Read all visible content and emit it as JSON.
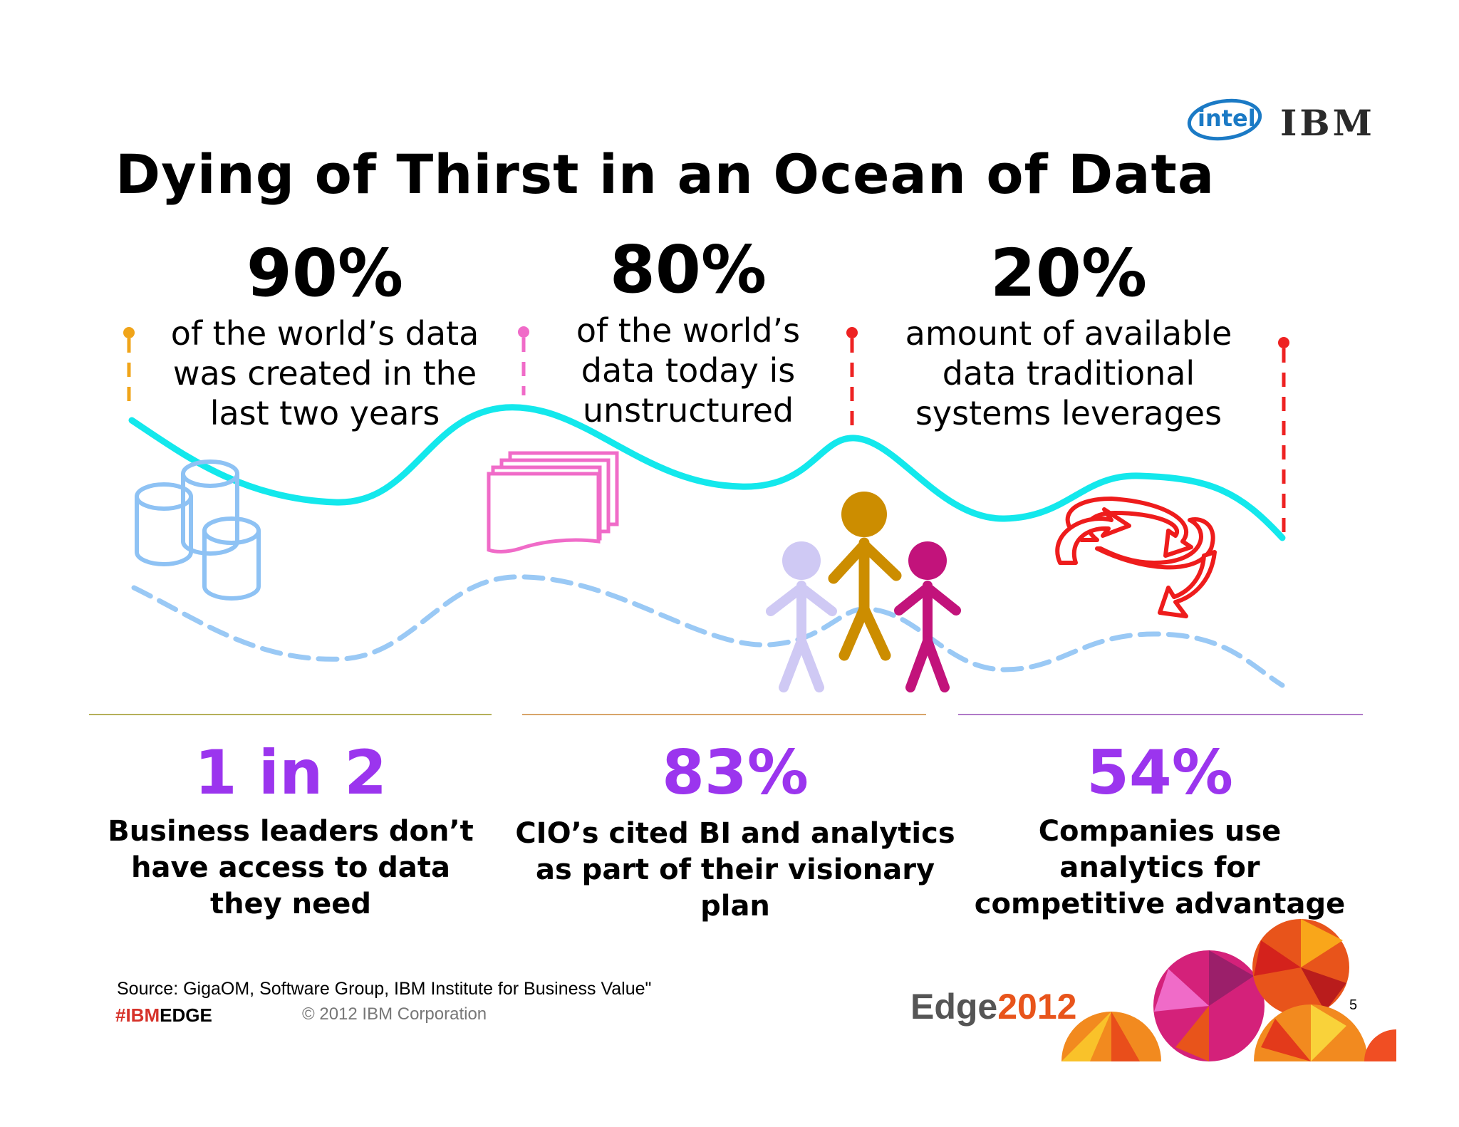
{
  "title": "Dying of Thirst in an Ocean of Data",
  "logos": {
    "intel": "intel",
    "ibm": "IBM"
  },
  "top_stats": [
    {
      "value": "90%",
      "lines": [
        "of the world’s data",
        "was created in the",
        "last two years"
      ],
      "marker_color": "#f0a419"
    },
    {
      "value": "80%",
      "lines": [
        "of the world’s",
        "data today is",
        "unstructured"
      ],
      "marker_color": "#f06bc8"
    },
    {
      "value": "20%",
      "lines": [
        "amount of available",
        "data traditional",
        "systems leverages"
      ],
      "marker_color": "#ee2222"
    }
  ],
  "bottom_stats": [
    {
      "value": "1 in 2",
      "lines": [
        "Business leaders don’t",
        "have access to data",
        "they need"
      ],
      "rule_color": "#b5b05a"
    },
    {
      "value": "83%",
      "lines": [
        "CIO’s cited BI and analytics",
        "as part of their visionary",
        "plan"
      ],
      "rule_color": "#d8a46a"
    },
    {
      "value": "54%",
      "lines": [
        "Companies use",
        "analytics for",
        "competitive advantage"
      ],
      "rule_color": "#b07ac8"
    }
  ],
  "icons": [
    "database-icon",
    "documents-icon",
    "people-icon",
    "cycle-arrows-icon"
  ],
  "colors": {
    "wave": "#13e8ec",
    "wave_dashed": "#9ac9f5",
    "accent_purple": "#9b35ee"
  },
  "footer": {
    "source": "Source: GigaOM, Software Group, IBM Institute for Business Value\"",
    "hashtag_prefix": "#IBM",
    "hashtag_suffix": "EDGE",
    "copyright": "© 2012 IBM Corporation",
    "edge_word": "Edge",
    "edge_year": "2012",
    "page_number": "5"
  }
}
